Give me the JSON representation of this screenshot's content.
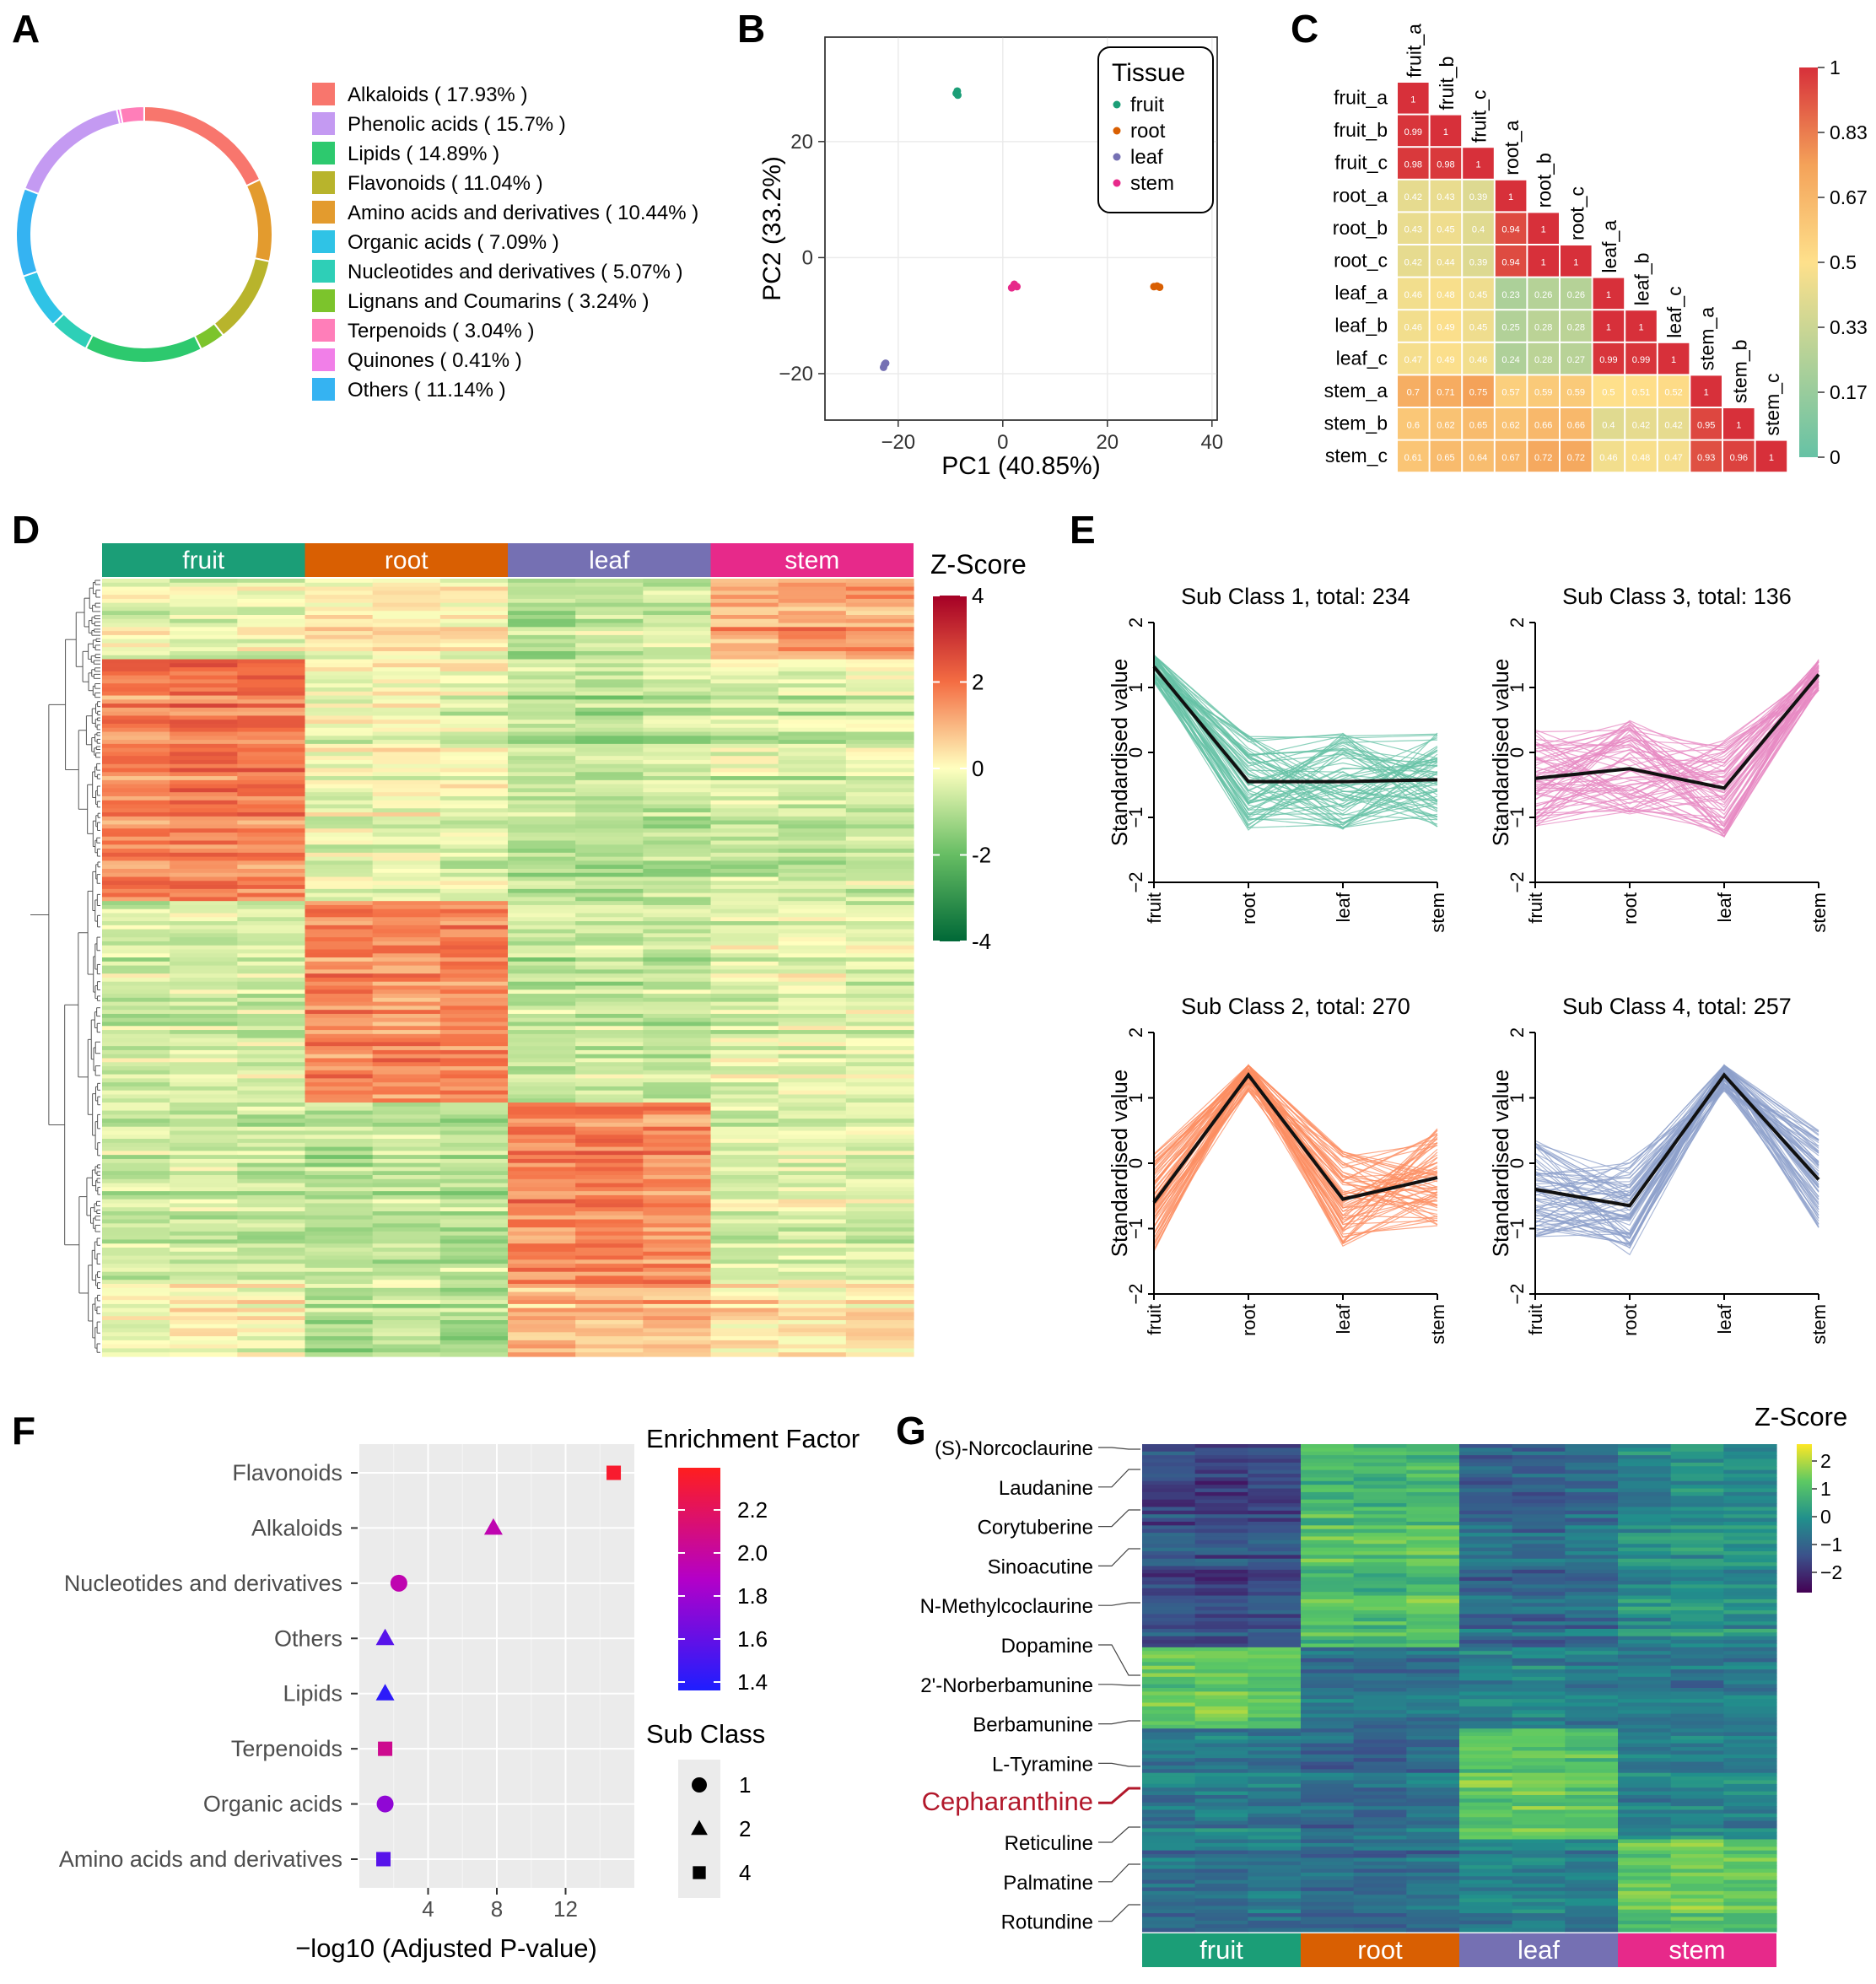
{
  "panels": [
    "A",
    "B",
    "C",
    "D",
    "E",
    "F",
    "G"
  ],
  "chart_data": [
    {
      "panel": "A",
      "type": "pie",
      "title": "",
      "categories": [
        "Alkaloids",
        "Phenolic acids",
        "Lipids",
        "Flavonoids",
        "Amino acids and derivatives",
        "Organic acids",
        "Nucleotides and derivatives",
        "Lignans and Coumarins",
        "Terpenoids",
        "Quinones",
        "Others"
      ],
      "legend_labels": [
        "Alkaloids ( 17.93% )",
        "Phenolic acids ( 15.7% )",
        "Lipids ( 14.89% )",
        "Flavonoids ( 11.04% )",
        "Amino acids and derivatives ( 10.44% )",
        "Organic acids ( 7.09% )",
        "Nucleotides and derivatives ( 5.07% )",
        "Lignans and Coumarins ( 3.24% )",
        "Terpenoids ( 3.04% )",
        "Quinones ( 0.41% )",
        "Others ( 11.14% )"
      ],
      "values": [
        17.93,
        15.7,
        14.89,
        11.04,
        10.44,
        7.09,
        5.07,
        3.24,
        3.04,
        0.41,
        11.14
      ],
      "colors": [
        "#F8766D",
        "#C49AF2",
        "#2DC96E",
        "#B8B42C",
        "#E39B2E",
        "#2FC3E6",
        "#2ECFB7",
        "#7CC42C",
        "#FF7EB9",
        "#F17FE8",
        "#35B3F2"
      ],
      "ring_order": [
        "Alkaloids",
        "Amino acids and derivatives",
        "Flavonoids",
        "Lignans and Coumarins",
        "Lipids",
        "Nucleotides and derivatives",
        "Organic acids",
        "Others",
        "Phenolic acids",
        "Quinones",
        "Terpenoids"
      ]
    },
    {
      "panel": "B",
      "type": "scatter",
      "xlabel": "PC1 (40.85%)",
      "ylabel": "PC2 (33.2%)",
      "xlim": [
        -34,
        41
      ],
      "ylim": [
        -28,
        38
      ],
      "xticks": [
        -20,
        0,
        20,
        40
      ],
      "yticks": [
        -20,
        0,
        20
      ],
      "legend_title": "Tissue",
      "series": [
        {
          "name": "fruit",
          "color": "#1B9E77",
          "points": [
            [
              -8.9,
              28.3
            ],
            [
              -8.7,
              28.7
            ],
            [
              -8.6,
              28.0
            ]
          ]
        },
        {
          "name": "root",
          "color": "#D95F02",
          "points": [
            [
              28.9,
              -5.0
            ],
            [
              29.5,
              -4.9
            ],
            [
              30.0,
              -5.1
            ]
          ]
        },
        {
          "name": "leaf",
          "color": "#7570B3",
          "points": [
            [
              -22.8,
              -18.9
            ],
            [
              -22.6,
              -18.4
            ],
            [
              -22.4,
              -18.2
            ]
          ]
        },
        {
          "name": "stem",
          "color": "#E7298A",
          "points": [
            [
              1.7,
              -5.2
            ],
            [
              2.2,
              -4.6
            ],
            [
              2.7,
              -5.0
            ]
          ]
        }
      ]
    },
    {
      "panel": "C",
      "type": "heatmap",
      "labels": [
        "fruit_a",
        "fruit_b",
        "fruit_c",
        "root_a",
        "root_b",
        "root_c",
        "leaf_a",
        "leaf_b",
        "leaf_c",
        "stem_a",
        "stem_b",
        "stem_c"
      ],
      "matrix": [
        [
          1
        ],
        [
          0.99,
          1
        ],
        [
          0.98,
          0.98,
          1
        ],
        [
          0.42,
          0.43,
          0.39,
          1
        ],
        [
          0.43,
          0.45,
          0.4,
          0.94,
          1
        ],
        [
          0.42,
          0.44,
          0.39,
          0.94,
          1,
          1
        ],
        [
          0.46,
          0.48,
          0.45,
          0.23,
          0.26,
          0.26,
          1
        ],
        [
          0.46,
          0.49,
          0.45,
          0.25,
          0.28,
          0.28,
          1,
          1
        ],
        [
          0.47,
          0.49,
          0.46,
          0.24,
          0.28,
          0.27,
          0.99,
          0.99,
          1
        ],
        [
          0.7,
          0.71,
          0.75,
          0.57,
          0.59,
          0.59,
          0.5,
          0.51,
          0.52,
          1
        ],
        [
          0.6,
          0.62,
          0.65,
          0.62,
          0.66,
          0.66,
          0.4,
          0.42,
          0.42,
          0.95,
          1
        ],
        [
          0.61,
          0.65,
          0.64,
          0.67,
          0.72,
          0.72,
          0.46,
          0.48,
          0.47,
          0.93,
          0.96,
          1
        ]
      ],
      "colorbar_ticks": [
        "1",
        "0.83",
        "0.67",
        "0.5",
        "0.33",
        "0.17",
        "0"
      ]
    },
    {
      "panel": "D",
      "type": "heatmap",
      "groups": [
        "fruit",
        "root",
        "leaf",
        "stem"
      ],
      "group_colors": [
        "#1B9E77",
        "#D95F02",
        "#7570B3",
        "#E7298A"
      ],
      "legend_title": "Z-Score",
      "colorbar_ticks": [
        "4",
        "2",
        "0",
        "-2",
        "-4"
      ],
      "block_structure": [
        {
          "rows": 20,
          "pattern": [
            -0.2,
            -0.3,
            -0.1,
            0.3,
            0.4,
            0.2,
            -0.9,
            -0.7,
            -0.6,
            1.2,
            1.4,
            1.3
          ]
        },
        {
          "rows": 60,
          "pattern": [
            1.6,
            1.8,
            1.7,
            -0.3,
            -0.2,
            -0.3,
            -0.9,
            -1.0,
            -0.9,
            -0.6,
            -0.7,
            -0.6
          ]
        },
        {
          "rows": 50,
          "pattern": [
            -0.6,
            -0.5,
            -0.6,
            1.6,
            1.5,
            1.7,
            -0.8,
            -0.7,
            -0.8,
            -0.4,
            -0.3,
            -0.4
          ]
        },
        {
          "rows": 45,
          "pattern": [
            -0.7,
            -0.6,
            -0.7,
            -0.9,
            -0.8,
            -0.9,
            1.7,
            1.8,
            1.6,
            -0.5,
            -0.4,
            -0.5
          ]
        },
        {
          "rows": 18,
          "pattern": [
            -0.1,
            0.1,
            0.0,
            -1.0,
            -0.9,
            -1.1,
            0.9,
            0.8,
            1.0,
            0.3,
            0.2,
            0.4
          ]
        }
      ]
    },
    {
      "panel": "E",
      "type": "line",
      "x": [
        "fruit",
        "root",
        "leaf",
        "stem"
      ],
      "ylabel": "Standardised value",
      "ylim": [
        -2,
        2
      ],
      "yticks": [
        -2,
        -1,
        0,
        1,
        2
      ],
      "subplots": [
        {
          "title": "Sub Class 1, total: 234",
          "color": "#66C2A5",
          "mean": [
            1.32,
            -0.45,
            -0.45,
            -0.42
          ]
        },
        {
          "title": "Sub Class 3, total: 136",
          "color": "#E78AC3",
          "mean": [
            -0.4,
            -0.25,
            -0.55,
            1.2
          ]
        },
        {
          "title": "Sub Class 2, total: 270",
          "color": "#FC8D62",
          "mean": [
            -0.6,
            1.35,
            -0.55,
            -0.22
          ]
        },
        {
          "title": "Sub Class 4, total: 257",
          "color": "#8DA0CB",
          "mean": [
            -0.4,
            -0.65,
            1.35,
            -0.25
          ]
        }
      ]
    },
    {
      "panel": "F",
      "type": "scatter",
      "xlabel": "−log10 (Adjusted P-value)",
      "xlim": [
        0,
        16
      ],
      "xticks": [
        4,
        8,
        12
      ],
      "categories": [
        "Flavonoids",
        "Alkaloids",
        "Nucleotides and derivatives",
        "Others",
        "Lipids",
        "Terpenoids",
        "Organic acids",
        "Amino acids and derivatives"
      ],
      "x_values": [
        14.8,
        7.8,
        2.3,
        1.5,
        1.5,
        1.5,
        1.5,
        1.4
      ],
      "enrichment_factor": [
        2.35,
        1.95,
        1.95,
        1.55,
        1.4,
        2.05,
        1.75,
        1.55
      ],
      "sub_class": [
        4,
        2,
        1,
        2,
        2,
        4,
        1,
        4
      ],
      "legend_title_color": "Enrichment Factor",
      "colorbar_ticks": [
        "2.2",
        "2.0",
        "1.8",
        "1.6",
        "1.4"
      ],
      "legend_title_shape": "Sub Class",
      "shape_labels": [
        "1",
        "2",
        "4"
      ]
    },
    {
      "panel": "G",
      "type": "heatmap",
      "groups": [
        "fruit",
        "root",
        "leaf",
        "stem"
      ],
      "group_colors": [
        "#1B9E77",
        "#D95F02",
        "#7570B3",
        "#E7298A"
      ],
      "legend_title": "Z-Score",
      "colorbar_ticks": [
        "2",
        "1",
        "0",
        "−1",
        "−2"
      ],
      "row_labels": [
        "(S)-Norcoclaurine",
        "Laudanine",
        "Corytuberine",
        "Sinoacutine",
        "N-Methylcoclaurine",
        "Dopamine",
        "2'-Norberbamunine",
        "Berbamunine",
        "L-Tyramine",
        "Cepharanthine",
        "Reticuline",
        "Palmatine",
        "Rotundine"
      ],
      "highlight": "Cepharanthine",
      "block_structure": [
        {
          "rows": 55,
          "pattern": [
            -1.4,
            -1.5,
            -1.3,
            1.0,
            0.9,
            1.1,
            -0.8,
            -0.9,
            -0.7,
            -0.1,
            0.1,
            0.0
          ]
        },
        {
          "rows": 22,
          "pattern": [
            1.3,
            1.4,
            1.2,
            -0.6,
            -0.7,
            -0.6,
            -0.3,
            -0.2,
            -0.4,
            -0.4,
            -0.5,
            -0.3
          ]
        },
        {
          "rows": 30,
          "pattern": [
            -0.5,
            -0.4,
            -0.5,
            -0.8,
            -0.9,
            -0.7,
            1.2,
            1.3,
            1.1,
            -0.3,
            -0.2,
            -0.3
          ]
        },
        {
          "rows": 25,
          "pattern": [
            -0.7,
            -0.8,
            -0.6,
            -0.9,
            -1.0,
            -0.8,
            -0.4,
            -0.3,
            -0.5,
            1.2,
            1.3,
            1.1
          ]
        }
      ]
    }
  ]
}
